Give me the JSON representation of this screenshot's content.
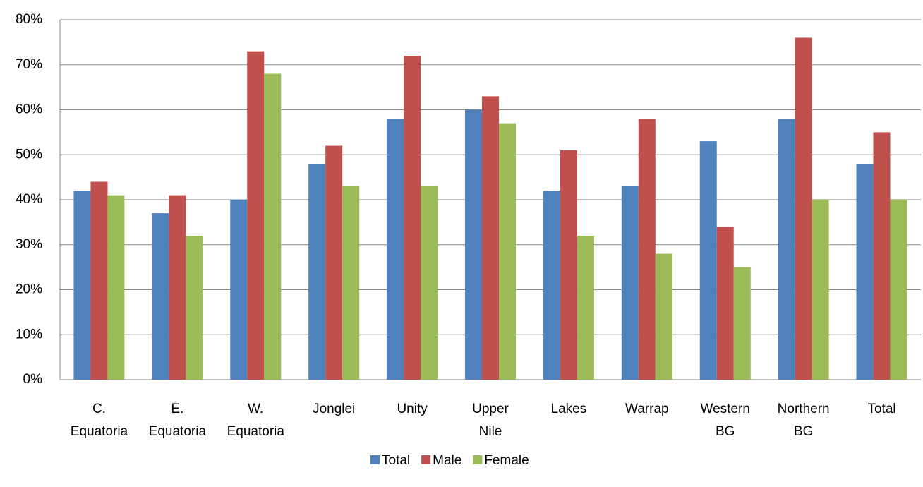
{
  "chart_data": {
    "type": "bar",
    "categories": [
      "C. Equatoria",
      "E. Equatoria",
      "W. Equatoria",
      "Jonglei",
      "Unity",
      "Upper Nile",
      "Lakes",
      "Warrap",
      "Western BG",
      "Northern BG",
      "Total"
    ],
    "series": [
      {
        "name": "Total",
        "color": "#4f81bd",
        "values": [
          42,
          37,
          40,
          48,
          58,
          60,
          42,
          43,
          53,
          58,
          48
        ]
      },
      {
        "name": "Male",
        "color": "#c0504d",
        "values": [
          44,
          41,
          73,
          52,
          72,
          63,
          51,
          58,
          34,
          76,
          55
        ]
      },
      {
        "name": "Female",
        "color": "#9bbb59",
        "values": [
          41,
          32,
          68,
          43,
          43,
          57,
          32,
          28,
          25,
          40,
          40
        ]
      }
    ],
    "ylim": [
      0,
      80
    ],
    "yticks": [
      {
        "value": 0,
        "label": "0%"
      },
      {
        "value": 10,
        "label": "10%"
      },
      {
        "value": 20,
        "label": "20%"
      },
      {
        "value": 30,
        "label": "30%"
      },
      {
        "value": 40,
        "label": "40%"
      },
      {
        "value": 50,
        "label": "50%"
      },
      {
        "value": 60,
        "label": "60%"
      },
      {
        "value": 70,
        "label": "70%"
      },
      {
        "value": 80,
        "label": "80%"
      }
    ],
    "grid": true,
    "legend": "bottom"
  }
}
